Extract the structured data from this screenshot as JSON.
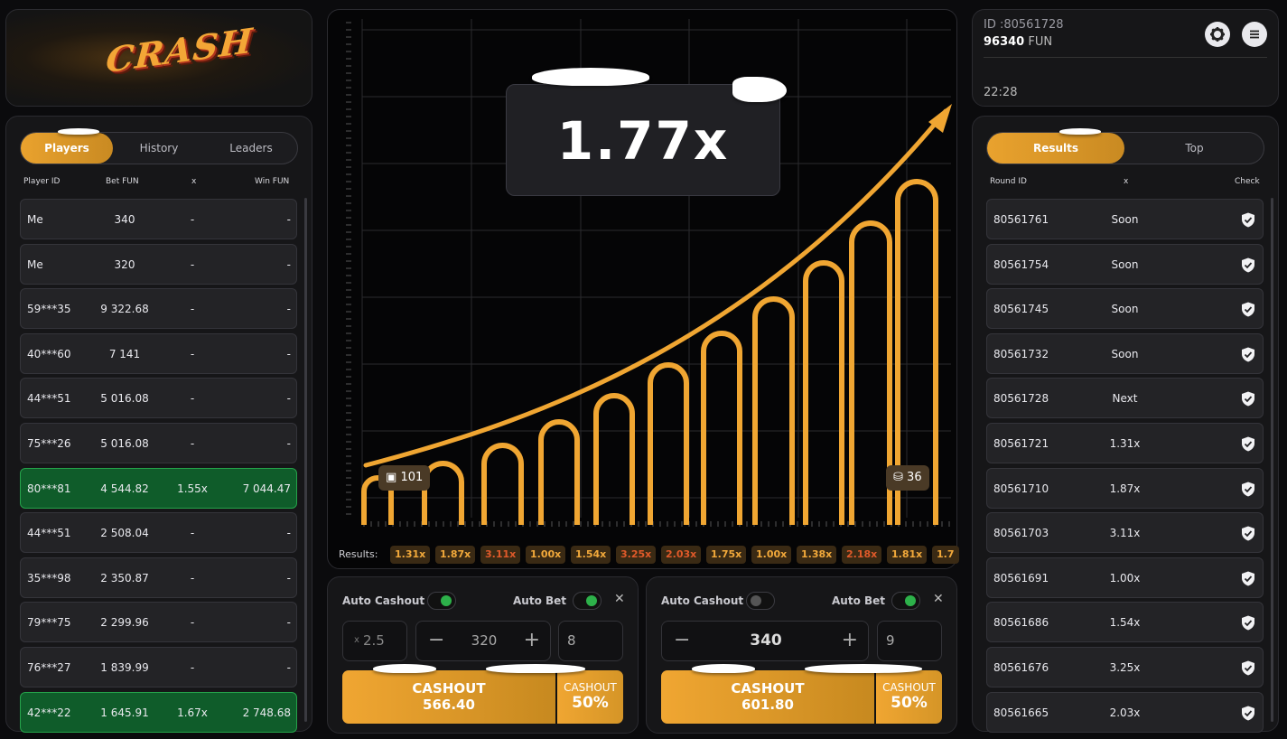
{
  "logo": {
    "text": "CRASH"
  },
  "players_panel": {
    "tabs": [
      "Players",
      "History",
      "Leaders"
    ],
    "active_tab": "Players",
    "columns": [
      "Player ID",
      "Bet  FUN",
      "x",
      "Win  FUN"
    ],
    "rows": [
      {
        "id": "Me",
        "bet": "340",
        "x": "-",
        "win": "-",
        "won": false
      },
      {
        "id": "Me",
        "bet": "320",
        "x": "-",
        "win": "-",
        "won": false
      },
      {
        "id": "59***35",
        "bet": "9 322.68",
        "x": "-",
        "win": "-",
        "won": false
      },
      {
        "id": "40***60",
        "bet": "7 141",
        "x": "-",
        "win": "-",
        "won": false
      },
      {
        "id": "44***51",
        "bet": "5 016.08",
        "x": "-",
        "win": "-",
        "won": false
      },
      {
        "id": "75***26",
        "bet": "5 016.08",
        "x": "-",
        "win": "-",
        "won": false
      },
      {
        "id": "80***81",
        "bet": "4 544.82",
        "x": "1.55x",
        "win": "7 044.47",
        "won": true
      },
      {
        "id": "44***51",
        "bet": "2 508.04",
        "x": "-",
        "win": "-",
        "won": false
      },
      {
        "id": "35***98",
        "bet": "2 350.87",
        "x": "-",
        "win": "-",
        "won": false
      },
      {
        "id": "79***75",
        "bet": "2 299.96",
        "x": "-",
        "win": "-",
        "won": false
      },
      {
        "id": "76***27",
        "bet": "1 839.99",
        "x": "-",
        "win": "-",
        "won": false
      },
      {
        "id": "42***22",
        "bet": "1 645.91",
        "x": "1.67x",
        "win": "2 748.68",
        "won": true
      }
    ]
  },
  "game": {
    "multiplier": "1.77x",
    "players_count": "101",
    "cashed_count": "36",
    "results_label": "Results:",
    "results": [
      {
        "v": "1.31x",
        "red": false
      },
      {
        "v": "1.87x",
        "red": false
      },
      {
        "v": "3.11x",
        "red": true
      },
      {
        "v": "1.00x",
        "red": false
      },
      {
        "v": "1.54x",
        "red": false
      },
      {
        "v": "3.25x",
        "red": true
      },
      {
        "v": "2.03x",
        "red": true
      },
      {
        "v": "1.75x",
        "red": false
      },
      {
        "v": "1.00x",
        "red": false
      },
      {
        "v": "1.38x",
        "red": false
      },
      {
        "v": "2.18x",
        "red": true
      },
      {
        "v": "1.81x",
        "red": false
      },
      {
        "v": "1.7",
        "red": false
      }
    ]
  },
  "bet1": {
    "auto_cashout_label": "Auto Cashout",
    "auto_cashout_on": true,
    "auto_bet_label": "Auto Bet",
    "auto_bet_on": true,
    "cashout_x_prefix": "x",
    "cashout_x": "2.5",
    "amount": "320",
    "rounds": "8",
    "cashout_label": "CASHOUT",
    "cashout_amount": "566.40",
    "partial_label": "CASHOUT",
    "partial_pct": "50%"
  },
  "bet2": {
    "auto_cashout_label": "Auto Cashout",
    "auto_cashout_on": false,
    "auto_bet_label": "Auto Bet",
    "auto_bet_on": true,
    "amount": "340",
    "rounds": "9",
    "cashout_label": "CASHOUT",
    "cashout_amount": "601.80",
    "partial_label": "CASHOUT",
    "partial_pct": "50%"
  },
  "user": {
    "id_label": "ID :80561728",
    "balance": "96340",
    "currency": "FUN",
    "time": "22:28"
  },
  "results_panel": {
    "tabs": [
      "Results",
      "Top"
    ],
    "active_tab": "Results",
    "columns": [
      "Round ID",
      "x",
      "Check"
    ],
    "rows": [
      {
        "round": "80561761",
        "x": "Soon"
      },
      {
        "round": "80561754",
        "x": "Soon"
      },
      {
        "round": "80561745",
        "x": "Soon"
      },
      {
        "round": "80561732",
        "x": "Soon"
      },
      {
        "round": "80561728",
        "x": "Next"
      },
      {
        "round": "80561721",
        "x": "1.31x"
      },
      {
        "round": "80561710",
        "x": "1.87x"
      },
      {
        "round": "80561703",
        "x": "3.11x"
      },
      {
        "round": "80561691",
        "x": "1.00x"
      },
      {
        "round": "80561686",
        "x": "1.54x"
      },
      {
        "round": "80561676",
        "x": "3.25x"
      },
      {
        "round": "80561665",
        "x": "2.03x"
      }
    ]
  },
  "colors": {
    "accent": "#f0a632",
    "win_green": "#0f5c2a",
    "panel": "#161618"
  }
}
